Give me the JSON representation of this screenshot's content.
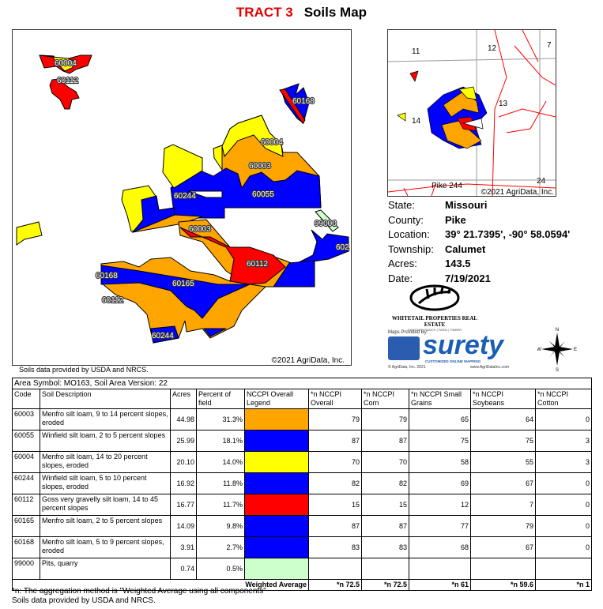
{
  "title": {
    "tract": "TRACT 3",
    "name": "Soils Map"
  },
  "main_map": {
    "labels": [
      "60004",
      "60112",
      "60168",
      "60004",
      "60003",
      "60244",
      "60055",
      "60003",
      "99000",
      "602",
      "60112",
      "60168",
      "60165",
      "60112",
      "60244"
    ],
    "copyright": "©2021 AgriData, Inc."
  },
  "source_note": "Soils data provided by USDA and NRCS.",
  "inset_map": {
    "labels": [
      "11",
      "12",
      "7",
      "13",
      "14",
      "24",
      "Pike 244"
    ],
    "copyright": "©2021 AgriData, Inc."
  },
  "info": [
    {
      "label": "State:",
      "value": "Missouri"
    },
    {
      "label": "County:",
      "value": "Pike"
    },
    {
      "label": "Location:",
      "value": "39° 21.7395',  -90° 58.0594'"
    },
    {
      "label": "Township:",
      "value": "Calumet"
    },
    {
      "label": "Acres:",
      "value": "143.5"
    },
    {
      "label": "Date:",
      "value": "7/19/2021"
    }
  ],
  "logos": {
    "whitetail": "WHITETAIL PROPERTIES REAL ESTATE",
    "whitetail_tag": "HUNTING | RANCH | FARM | TIMBER",
    "maps_by": "Maps Provided By:",
    "surety": "surety",
    "surety_tag": "CUSTOMIZED ONLINE MAPPING",
    "agridata": "© AgriData, Inc. 2021",
    "url": "www.AgriDataInc.com",
    "compass": {
      "n": "N",
      "s": "S",
      "e": "E",
      "w": "W"
    }
  },
  "colors": {
    "orange": "#ffa500",
    "blue": "#0000ff",
    "yellow": "#ffff00",
    "red": "#ff0000",
    "lightgreen": "#ccffcc"
  },
  "table": {
    "area_symbol": "Area Symbol: MO163, Soil Area Version: 22",
    "headers": [
      "Code",
      "Soil Description",
      "Acres",
      "Percent of field",
      "NCCPI Overall Legend",
      "*n NCCPI Overall",
      "*n NCCPI Corn",
      "*n NCCPI Small Grains",
      "*n NCCPI Soybeans",
      "*n NCCPI Cotton"
    ],
    "rows": [
      {
        "code": "60003",
        "desc": "Menfro silt loam, 9 to 14 percent slopes, eroded",
        "acres": "44.98",
        "pct": "31.3%",
        "color": "#ffa500",
        "overall": "79",
        "corn": "79",
        "small": "65",
        "soy": "64",
        "cotton": "0"
      },
      {
        "code": "60055",
        "desc": "Winfield silt loam, 2 to 5 percent slopes",
        "acres": "25.99",
        "pct": "18.1%",
        "color": "#0000ff",
        "overall": "87",
        "corn": "87",
        "small": "75",
        "soy": "75",
        "cotton": "3"
      },
      {
        "code": "60004",
        "desc": "Menfro silt loam, 14 to 20 percent slopes, eroded",
        "acres": "20.10",
        "pct": "14.0%",
        "color": "#ffff00",
        "overall": "70",
        "corn": "70",
        "small": "58",
        "soy": "55",
        "cotton": "3"
      },
      {
        "code": "60244",
        "desc": "Winfield silt loam, 5 to 10 percent slopes, eroded",
        "acres": "16.92",
        "pct": "11.8%",
        "color": "#0000ff",
        "overall": "82",
        "corn": "82",
        "small": "69",
        "soy": "67",
        "cotton": "0"
      },
      {
        "code": "60112",
        "desc": "Goss very gravelly silt loam, 14 to 45 percent slopes",
        "acres": "16.77",
        "pct": "11.7%",
        "color": "#ff0000",
        "overall": "15",
        "corn": "15",
        "small": "12",
        "soy": "7",
        "cotton": "0"
      },
      {
        "code": "60165",
        "desc": "Menfro silt loam, 2 to 5 percent slopes",
        "acres": "14.09",
        "pct": "9.8%",
        "color": "#0000ff",
        "overall": "87",
        "corn": "87",
        "small": "77",
        "soy": "79",
        "cotton": "0"
      },
      {
        "code": "60168",
        "desc": "Menfro silt loam, 5 to 9 percent slopes, eroded",
        "acres": "3.91",
        "pct": "2.7%",
        "color": "#0000ff",
        "overall": "83",
        "corn": "83",
        "small": "68",
        "soy": "67",
        "cotton": "0"
      },
      {
        "code": "99000",
        "desc": "Pits, quarry",
        "acres": "0.74",
        "pct": "0.5%",
        "color": "#ccffcc",
        "overall": "",
        "corn": "",
        "small": "",
        "soy": "",
        "cotton": ""
      }
    ],
    "weighted": {
      "label": "Weighted Average",
      "overall": "*n 72.5",
      "corn": "*n 72.5",
      "small": "*n 61",
      "soy": "*n 59.6",
      "cotton": "*n 1"
    }
  },
  "footnotes": [
    "*n: The aggregation method is \"Weighted Average using all components\"",
    "Soils data provided by USDA and NRCS."
  ]
}
